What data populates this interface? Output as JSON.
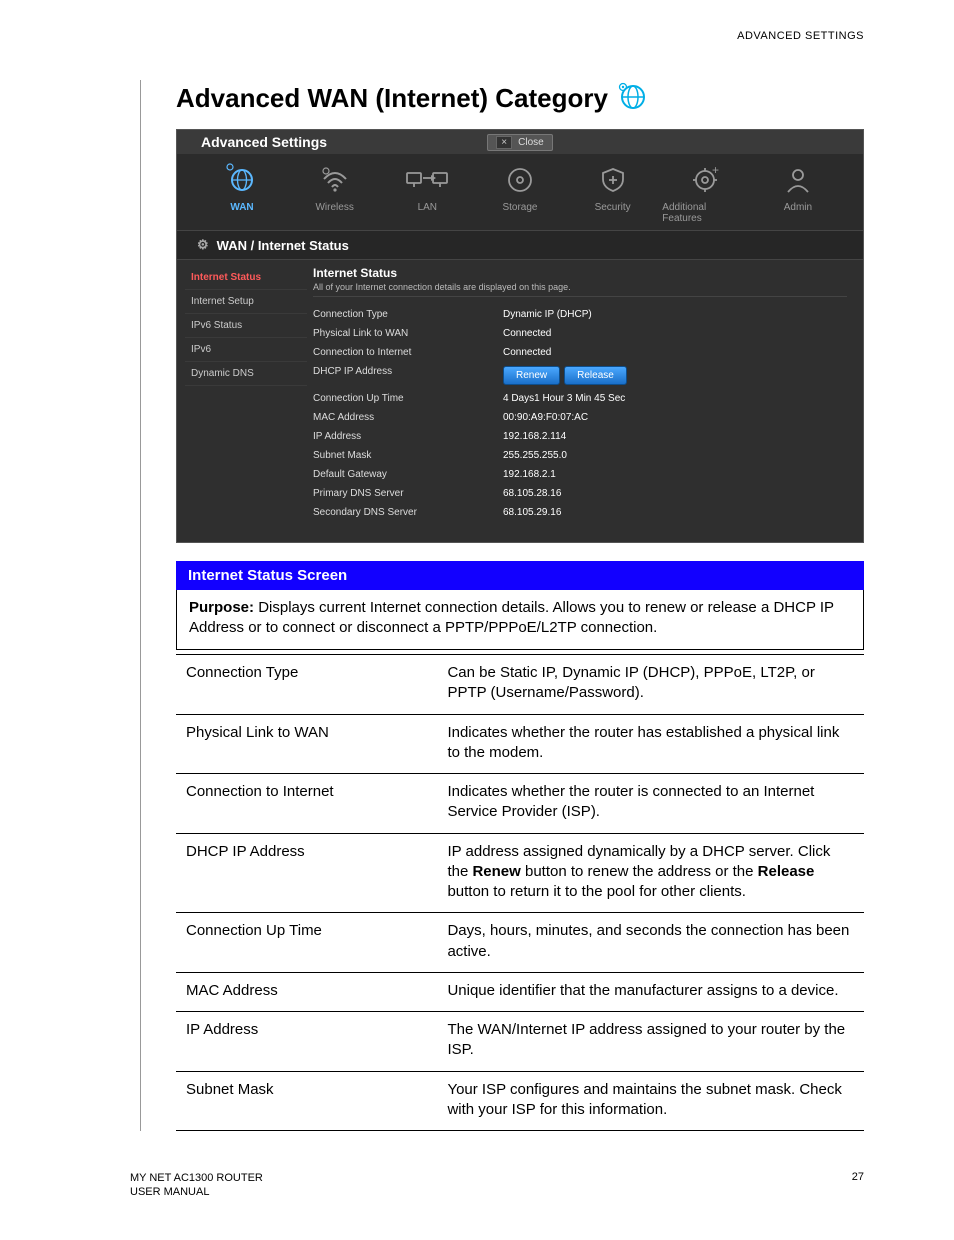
{
  "header_right": "ADVANCED SETTINGS",
  "title": "Advanced WAN (Internet) Category",
  "shot": {
    "adv_label": "Advanced Settings",
    "close_label": "Close",
    "nav": [
      {
        "label": "WAN",
        "active": true
      },
      {
        "label": "Wireless"
      },
      {
        "label": "LAN"
      },
      {
        "label": "Storage"
      },
      {
        "label": "Security"
      },
      {
        "label": "Additional Features"
      },
      {
        "label": "Admin"
      }
    ],
    "crumb": "WAN / Internet Status",
    "side": [
      "Internet Status",
      "Internet Setup",
      "IPv6 Status",
      "IPv6",
      "Dynamic DNS"
    ],
    "side_selected": 0,
    "pane_head": "Internet Status",
    "pane_sub": "All of your Internet connection details are displayed on this page.",
    "renew_label": "Renew",
    "release_label": "Release",
    "rows": [
      {
        "k": "Connection Type",
        "v": "Dynamic IP (DHCP)"
      },
      {
        "k": "Physical Link to WAN",
        "v": "Connected"
      },
      {
        "k": "Connection to Internet",
        "v": "Connected"
      },
      {
        "k": "DHCP IP Address",
        "v": "__buttons__"
      },
      {
        "k": "Connection Up Time",
        "v": "4 Days1 Hour 3 Min 45 Sec"
      },
      {
        "k": "MAC Address",
        "v": "00:90:A9:F0:07:AC"
      },
      {
        "k": "IP Address",
        "v": "192.168.2.114"
      },
      {
        "k": "Subnet Mask",
        "v": "255.255.255.0"
      },
      {
        "k": "Default Gateway",
        "v": "192.168.2.1"
      },
      {
        "k": "Primary DNS Server",
        "v": "68.105.28.16"
      },
      {
        "k": "Secondary DNS Server",
        "v": "68.105.29.16"
      }
    ]
  },
  "banner": "Internet Status Screen",
  "purpose_label": "Purpose:",
  "purpose_text": "Displays current Internet connection details. Allows you to renew or release a DHCP IP Address or to connect or disconnect a PPTP/PPPoE/L2TP connection.",
  "desc": [
    {
      "k": "Connection Type",
      "v": "Can be Static IP, Dynamic IP (DHCP), PPPoE, LT2P, or PPTP (Username/Password)."
    },
    {
      "k": "Physical Link to WAN",
      "v": "Indicates whether the router has established a physical link to the modem."
    },
    {
      "k": "Connection to Internet",
      "v": "Indicates whether the router is connected to an Internet Service Provider (ISP)."
    },
    {
      "k": "DHCP IP Address",
      "v": "IP address assigned dynamically by a DHCP server. Click the <b>Renew</b> button to renew the address or the <b>Release</b> button to return it to the pool for other clients."
    },
    {
      "k": "Connection Up Time",
      "v": "Days, hours, minutes, and seconds the connection has been active."
    },
    {
      "k": "MAC Address",
      "v": "Unique identifier that the manufacturer assigns to a device."
    },
    {
      "k": "IP Address",
      "v": "The WAN/Internet IP address assigned to your router by the ISP."
    },
    {
      "k": "Subnet Mask",
      "v": "Your ISP configures and maintains the subnet mask. Check with your ISP for this information."
    }
  ],
  "footer_line1": "MY NET AC1300 ROUTER",
  "footer_line2": "USER MANUAL",
  "page_no": "27"
}
